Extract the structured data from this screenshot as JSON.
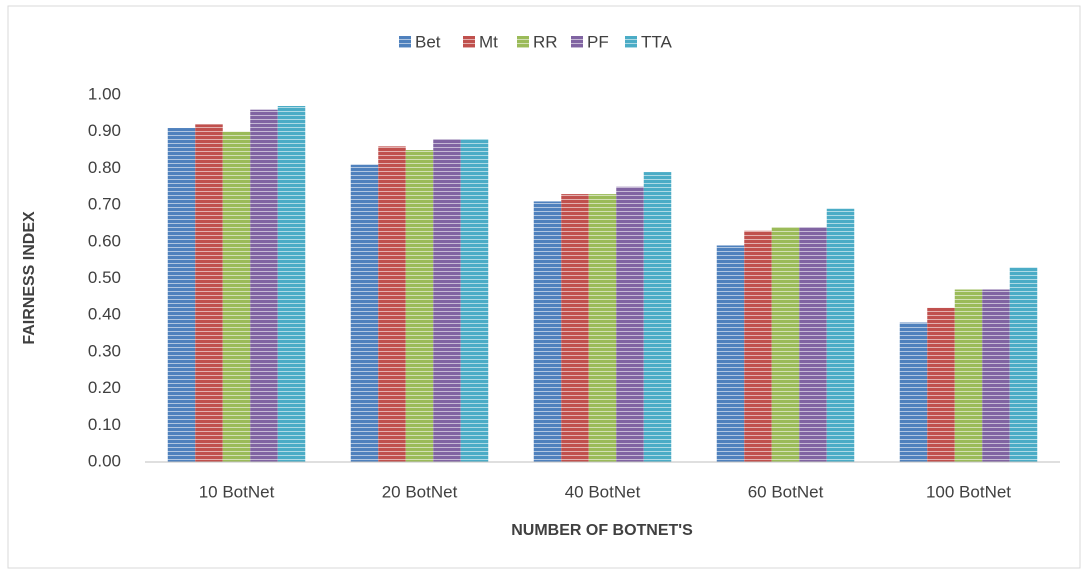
{
  "chart_data": {
    "type": "bar",
    "categories": [
      "10 BotNet",
      "20 BotNet",
      "40 BotNet",
      "60 BotNet",
      "100 BotNet"
    ],
    "series": [
      {
        "name": "Bet",
        "color": "#4f81bd",
        "values": [
          0.91,
          0.81,
          0.71,
          0.59,
          0.38
        ]
      },
      {
        "name": "Mt",
        "color": "#c0504d",
        "values": [
          0.92,
          0.86,
          0.73,
          0.63,
          0.42
        ]
      },
      {
        "name": "RR",
        "color": "#9bbb59",
        "values": [
          0.9,
          0.85,
          0.73,
          0.64,
          0.47
        ]
      },
      {
        "name": "PF",
        "color": "#8064a2",
        "values": [
          0.96,
          0.88,
          0.75,
          0.64,
          0.47
        ]
      },
      {
        "name": "TTA",
        "color": "#4bacc6",
        "values": [
          0.97,
          0.88,
          0.79,
          0.69,
          0.53
        ]
      }
    ],
    "x_label": "NUMBER OF BOTNET'S",
    "y_label": "FAIRNESS INDEX",
    "ylim": [
      0,
      1
    ],
    "yticks": [
      {
        "value": 0,
        "label": "0.00"
      },
      {
        "value": 0.1,
        "label": "0.10"
      },
      {
        "value": 0.2,
        "label": "0.20"
      },
      {
        "value": 0.3,
        "label": "0.30"
      },
      {
        "value": 0.4,
        "label": "0.40"
      },
      {
        "value": 0.5,
        "label": "0.50"
      },
      {
        "value": 0.6,
        "label": "0.60"
      },
      {
        "value": 0.7,
        "label": "0.70"
      },
      {
        "value": 0.8,
        "label": "0.80"
      },
      {
        "value": 0.9,
        "label": "0.90"
      },
      {
        "value": 1,
        "label": "1.00"
      }
    ],
    "grid": false,
    "legend": "top"
  }
}
